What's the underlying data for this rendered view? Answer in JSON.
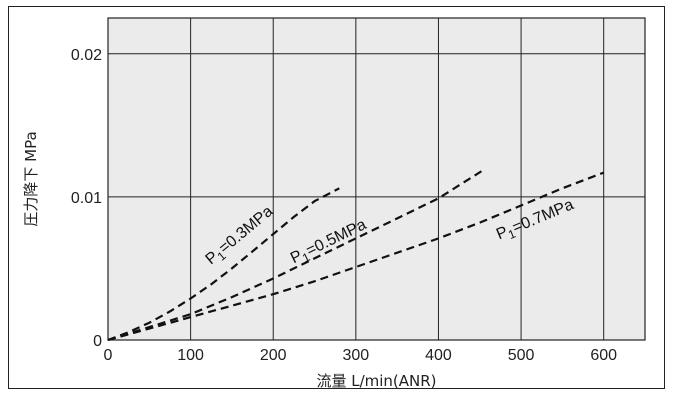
{
  "chart_data": {
    "type": "line",
    "xlabel": "流量 L/min(ANR)",
    "ylabel": "圧力降下 MPa",
    "xlim": [
      0,
      650
    ],
    "ylim": [
      0,
      0.0225
    ],
    "x_ticks": [
      0,
      100,
      200,
      300,
      400,
      500,
      600
    ],
    "x_tick_labels": [
      "0",
      "100",
      "200",
      "300",
      "400",
      "500",
      "600"
    ],
    "y_ticks": [
      0,
      0.01,
      0.02
    ],
    "y_tick_labels": [
      "0",
      "0.01",
      "0.02"
    ],
    "grid": true,
    "plot_background": "#ebebeb",
    "line_style": "dashed",
    "series": [
      {
        "name": "P1=0.3MPa",
        "label_main": "P",
        "label_sub": "1",
        "label_rest": "=0.3MPa",
        "x": [
          0,
          25,
          50,
          75,
          100,
          125,
          150,
          175,
          200,
          225,
          250,
          280
        ],
        "y": [
          0,
          0.00055,
          0.0012,
          0.002,
          0.0029,
          0.0039,
          0.005,
          0.0062,
          0.0074,
          0.0086,
          0.0097,
          0.0106
        ]
      },
      {
        "name": "P1=0.5MPa",
        "label_main": "P",
        "label_sub": "1",
        "label_rest": "=0.5MPa",
        "x": [
          0,
          50,
          100,
          150,
          200,
          250,
          300,
          350,
          400,
          455
        ],
        "y": [
          0,
          0.0009,
          0.0018,
          0.003,
          0.0043,
          0.0057,
          0.0071,
          0.0085,
          0.0099,
          0.0119
        ]
      },
      {
        "name": "P1=0.7MPa",
        "label_main": "P",
        "label_sub": "1",
        "label_rest": "=0.7MPa",
        "x": [
          0,
          50,
          100,
          150,
          200,
          250,
          300,
          350,
          400,
          450,
          500,
          550,
          600
        ],
        "y": [
          0,
          0.0008,
          0.0016,
          0.0024,
          0.0032,
          0.0041,
          0.0051,
          0.0061,
          0.0071,
          0.0082,
          0.0094,
          0.0106,
          0.0117
        ]
      }
    ]
  }
}
